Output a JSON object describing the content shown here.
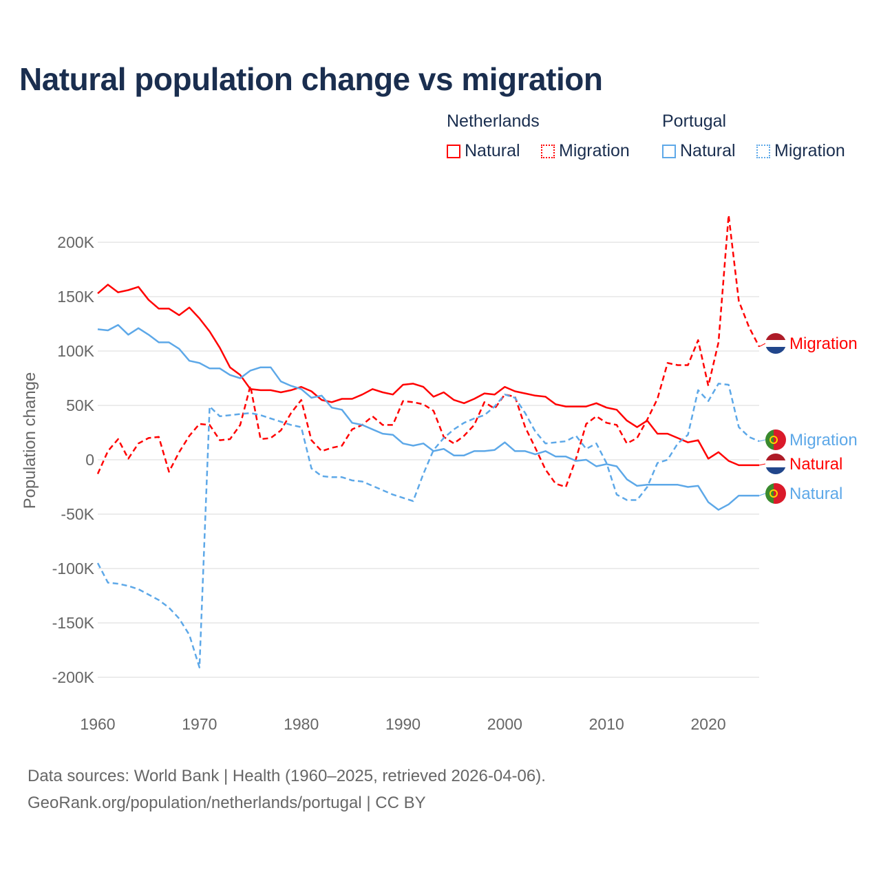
{
  "title": "Natural population change vs migration",
  "legend": {
    "groups": [
      {
        "name": "Netherlands",
        "items": [
          "Natural",
          "Migration"
        ],
        "color": "#ff0000"
      },
      {
        "name": "Portugal",
        "items": [
          "Natural",
          "Migration"
        ],
        "color": "#5da8e8"
      }
    ]
  },
  "footer": {
    "line1": "Data sources: World Bank | Health (1960–2025, retrieved 2026-04-06).",
    "line2": "GeoRank.org/population/netherlands/portugal | CC BY"
  },
  "chart_data": {
    "type": "line",
    "title": "Natural population change vs migration",
    "xlabel": "",
    "ylabel": "Population change",
    "xlim": [
      1960,
      2025
    ],
    "ylim": [
      -200000,
      200000
    ],
    "xticks": [
      1960,
      1970,
      1980,
      1990,
      2000,
      2010,
      2020
    ],
    "xtick_labels": [
      "1960",
      "1970",
      "1980",
      "1990",
      "2000",
      "2010",
      "2020"
    ],
    "yticks": [
      200000,
      150000,
      100000,
      50000,
      0,
      -50000,
      -100000,
      -150000,
      -200000
    ],
    "ytick_labels": [
      "200K",
      "150K",
      "100K",
      "50K",
      "0",
      "-50K",
      "-100K",
      "-150K",
      "-200K"
    ],
    "grid": true,
    "x_start": 1960,
    "series": [
      {
        "name": "Netherlands Natural",
        "end_label": "Natural",
        "color": "#ff0000",
        "dash": false,
        "flag": "netherlands",
        "values": [
          153,
          161,
          154,
          156,
          159,
          147,
          139,
          139,
          133,
          140,
          130,
          118,
          103,
          85,
          78,
          65,
          64,
          64,
          62,
          64,
          67,
          63,
          55,
          53,
          56,
          56,
          60,
          65,
          62,
          60,
          69,
          70,
          67,
          58,
          62,
          55,
          52,
          56,
          61,
          60,
          67,
          63,
          61,
          59,
          58,
          51,
          49,
          49,
          49,
          52,
          48,
          46,
          36,
          30,
          36,
          24,
          24,
          20,
          16,
          18,
          1,
          7,
          -1,
          -5,
          -5,
          -5
        ]
      },
      {
        "name": "Netherlands Migration",
        "end_label": "Migration",
        "color": "#ff0000",
        "dash": true,
        "flag": "netherlands",
        "values": [
          -13,
          8,
          19,
          1,
          15,
          20,
          21,
          -11,
          7,
          22,
          33,
          32,
          18,
          19,
          32,
          68,
          19,
          20,
          27,
          43,
          55,
          18,
          8,
          11,
          13,
          28,
          32,
          40,
          32,
          32,
          54,
          53,
          51,
          45,
          21,
          15,
          22,
          32,
          53,
          47,
          60,
          58,
          30,
          11,
          -9,
          -22,
          -25,
          1,
          33,
          40,
          34,
          32,
          15,
          20,
          37,
          56,
          89,
          87,
          87,
          110,
          68,
          108,
          225,
          146,
          122,
          104
        ]
      },
      {
        "name": "Portugal Natural",
        "end_label": "Natural",
        "color": "#5da8e8",
        "dash": false,
        "flag": "portugal",
        "values": [
          120,
          119,
          124,
          115,
          121,
          115,
          108,
          108,
          102,
          91,
          89,
          84,
          84,
          78,
          75,
          82,
          85,
          85,
          72,
          68,
          65,
          57,
          59,
          48,
          46,
          34,
          32,
          28,
          24,
          23,
          15,
          13,
          15,
          8,
          10,
          4,
          4,
          8,
          8,
          9,
          16,
          8,
          8,
          5,
          8,
          3,
          3,
          -1,
          0,
          -6,
          -4,
          -6,
          -18,
          -24,
          -23,
          -23,
          -23,
          -23,
          -25,
          -24,
          -39,
          -46,
          -41,
          -33,
          -33,
          -33
        ]
      },
      {
        "name": "Portugal Migration",
        "end_label": "Migration",
        "color": "#5da8e8",
        "dash": true,
        "flag": "portugal",
        "values": [
          -95,
          -113,
          -114,
          -116,
          -119,
          -124,
          -129,
          -136,
          -146,
          -161,
          -191,
          49,
          40,
          41,
          42,
          43,
          41,
          38,
          35,
          32,
          30,
          -8,
          -15,
          -16,
          -16,
          -19,
          -20,
          -24,
          -28,
          -32,
          -35,
          -38,
          -13,
          9,
          20,
          28,
          34,
          38,
          41,
          49,
          60,
          57,
          43,
          26,
          15,
          16,
          17,
          22,
          10,
          15,
          -3,
          -32,
          -37,
          -37,
          -25,
          -3,
          0,
          15,
          23,
          64,
          54,
          70,
          69,
          30,
          21,
          17
        ]
      }
    ],
    "value_unit": "thousands"
  }
}
